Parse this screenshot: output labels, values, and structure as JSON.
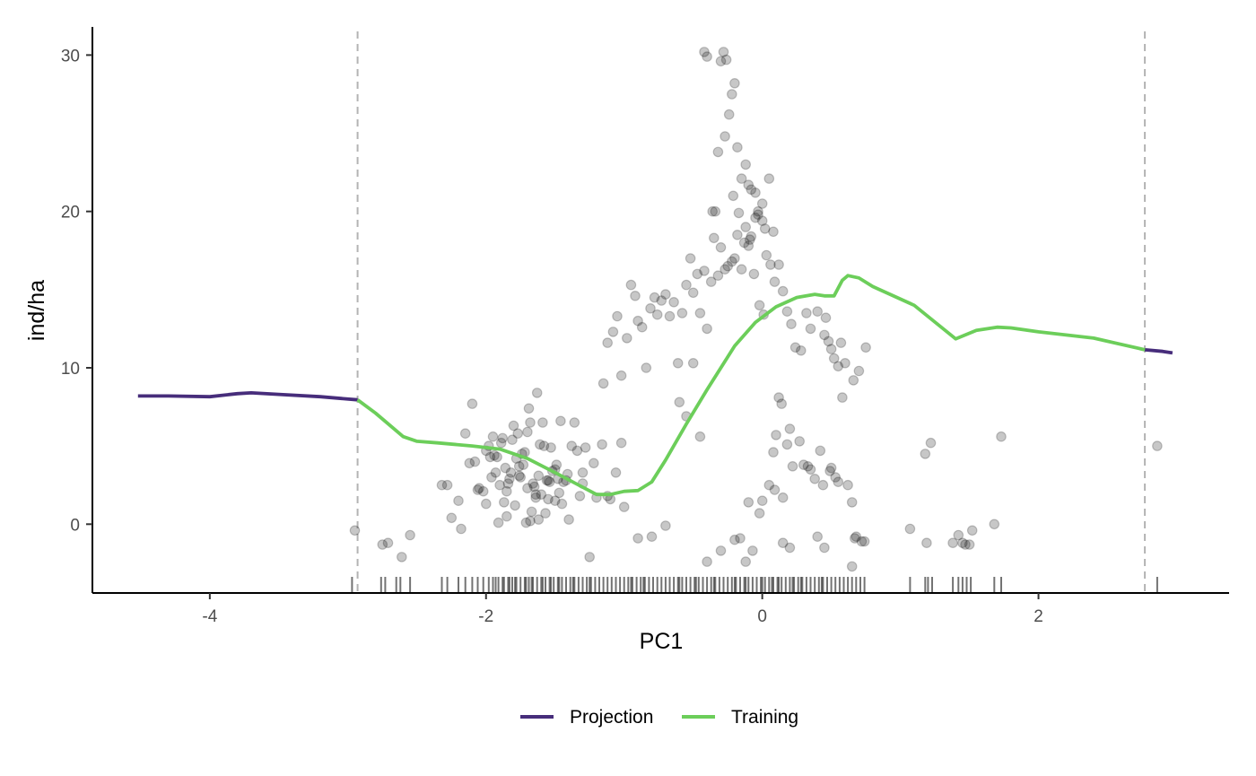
{
  "chart_data": {
    "type": "scatter",
    "title": "",
    "xlabel": "PC1",
    "ylabel": "ind/ha",
    "xlim": [
      -4.85,
      3.38
    ],
    "ylim": [
      -4.4,
      31.8
    ],
    "x_ticks": [
      -4,
      -2,
      0,
      2
    ],
    "x_tick_labels": [
      "-4",
      "-2",
      "0",
      "2"
    ],
    "y_ticks": [
      0,
      10,
      20,
      30
    ],
    "y_tick_labels": [
      "0",
      "10",
      "20",
      "30"
    ],
    "grid": false,
    "legend_position": "bottom",
    "training_bounds": [
      -2.93,
      2.77
    ],
    "colors": {
      "projection": "#472d7b",
      "training": "#6cce5a",
      "points": "#000000",
      "bounds": "#b3b3b3"
    },
    "series": [
      {
        "name": "Projection",
        "color": "#472d7b",
        "segments": [
          {
            "x": [
              -4.52,
              -4.3,
              -4.0,
              -3.8,
              -3.7,
              -3.5,
              -3.2,
              -2.93
            ],
            "y": [
              8.2,
              8.2,
              8.15,
              8.35,
              8.4,
              8.3,
              8.15,
              7.95
            ]
          },
          {
            "x": [
              2.77,
              2.9,
              2.97
            ],
            "y": [
              11.15,
              11.05,
              10.95
            ]
          }
        ]
      },
      {
        "name": "Training",
        "color": "#6cce5a",
        "x": [
          -2.93,
          -2.8,
          -2.6,
          -2.5,
          -2.35,
          -2.1,
          -1.9,
          -1.7,
          -1.5,
          -1.35,
          -1.2,
          -1.1,
          -1.0,
          -0.9,
          -0.8,
          -0.7,
          -0.55,
          -0.4,
          -0.2,
          -0.05,
          0.1,
          0.25,
          0.38,
          0.45,
          0.52,
          0.58,
          0.62,
          0.7,
          0.8,
          1.1,
          1.4,
          1.55,
          1.7,
          1.8,
          2.0,
          2.4,
          2.77
        ],
        "y": [
          7.95,
          7.1,
          5.6,
          5.3,
          5.2,
          5.0,
          4.8,
          4.2,
          3.3,
          2.6,
          1.9,
          1.9,
          2.1,
          2.15,
          2.7,
          4.1,
          6.4,
          8.6,
          11.4,
          12.9,
          13.9,
          14.5,
          14.7,
          14.6,
          14.6,
          15.6,
          15.9,
          15.75,
          15.2,
          14.0,
          11.85,
          12.4,
          12.6,
          12.55,
          12.3,
          11.9,
          11.15
        ]
      }
    ],
    "points": {
      "x": [
        -2.95,
        -2.75,
        -2.71,
        -2.61,
        -2.55,
        -2.32,
        -2.2,
        -2.1,
        -2.05,
        -2.0,
        -1.95,
        -1.92,
        -1.9,
        -1.87,
        -1.85,
        -1.82,
        -1.78,
        -1.75,
        -1.72,
        -1.7,
        -1.68,
        -1.66,
        -1.64,
        -1.62,
        -1.6,
        -1.58,
        -1.55,
        -1.52,
        -1.5,
        -1.47,
        -1.44,
        -1.4,
        -1.36,
        -1.32,
        -1.28,
        -1.22,
        -1.16,
        -1.12,
        -1.06,
        -1.02,
        -2.25,
        -2.15,
        -2.08,
        -1.98,
        -1.93,
        -1.88,
        -1.84,
        -1.8,
        -1.77,
        -1.73,
        -1.69,
        -1.65,
        -1.61,
        -1.57,
        -1.53,
        -1.48,
        -1.42,
        -1.38,
        -1.34,
        -1.3,
        -2.28,
        -2.12,
        -2.02,
        -1.96,
        -1.91,
        -1.86,
        -1.81,
        -1.76,
        -1.71,
        -1.67,
        -1.63,
        -1.59,
        -1.54,
        -1.49,
        -1.45,
        -2.18,
        -2.06,
        -1.97,
        -1.89,
        -1.83,
        -1.79,
        -1.74,
        -1.68,
        -1.64,
        -1.56,
        -1.5,
        -1.46,
        -1.41,
        -2.0,
        -1.94,
        -1.85,
        -1.76,
        -1.7,
        -1.62,
        -1.55,
        -1.25,
        -1.2,
        -1.15,
        -1.12,
        -1.08,
        -1.05,
        -1.02,
        -0.98,
        -0.95,
        -0.92,
        -0.9,
        -0.87,
        -0.84,
        -0.81,
        -0.78,
        -0.76,
        -0.73,
        -0.7,
        -0.67,
        -0.64,
        -0.61,
        -0.58,
        -0.55,
        -0.52,
        -0.5,
        -0.47,
        -0.45,
        -0.42,
        -0.4,
        -0.37,
        -0.35,
        -0.32,
        -0.3,
        -0.27,
        -0.25,
        -0.22,
        -0.2,
        -0.18,
        -0.15,
        -0.12,
        -0.1,
        -0.08,
        -0.05,
        -0.03,
        0.0,
        0.03,
        0.06,
        0.09,
        0.12,
        0.15,
        0.18,
        0.21,
        0.24,
        0.28,
        0.32,
        0.35,
        0.4,
        0.45,
        0.5,
        0.55,
        -0.42,
        -0.4,
        -0.3,
        -0.28,
        -0.26,
        -0.24,
        -0.22,
        -0.2,
        -0.18,
        -0.15,
        -0.12,
        -0.1,
        -0.08,
        -0.05,
        -0.03,
        0.0,
        0.02,
        0.05,
        0.08,
        -0.36,
        -0.34,
        -0.32,
        -0.27,
        -0.21,
        -0.17,
        -0.13,
        -0.09,
        -0.06,
        -0.02,
        0.01,
        0.12,
        0.14,
        0.1,
        0.08,
        0.2,
        0.18,
        0.3,
        0.35,
        0.42,
        0.5,
        0.55,
        0.62,
        0.66,
        0.7,
        0.75,
        0.48,
        0.52,
        0.46,
        0.58,
        0.65,
        0.05,
        0.09,
        0.15,
        0.22,
        0.27,
        0.33,
        0.38,
        0.44,
        0.49,
        0.53,
        0.57,
        0.6,
        0.67,
        0.72,
        -0.02,
        -0.07,
        -0.12,
        -0.16,
        -0.6,
        -0.55,
        -0.5,
        -0.45,
        -0.7,
        -0.8,
        -0.9,
        -1.0,
        -1.1,
        -1.3,
        -0.3,
        -0.4,
        -0.2,
        -0.1,
        0.0,
        0.15,
        0.2,
        0.4,
        0.45,
        0.65,
        0.68,
        0.74,
        1.07,
        1.18,
        1.19,
        1.22,
        1.38,
        1.42,
        1.45,
        1.47,
        1.5,
        1.52,
        1.68,
        1.73,
        2.86
      ],
      "y": [
        -0.4,
        -1.3,
        -1.2,
        -2.1,
        -0.7,
        2.5,
        1.5,
        7.7,
        2.3,
        4.7,
        5.6,
        4.3,
        2.5,
        1.4,
        0.5,
        3.3,
        4.2,
        3.0,
        4.6,
        2.3,
        6.5,
        2.6,
        1.7,
        0.3,
        1.9,
        5.0,
        2.8,
        3.4,
        1.5,
        2.0,
        2.7,
        0.3,
        6.5,
        1.8,
        4.9,
        3.9,
        5.1,
        1.8,
        3.3,
        5.2,
        0.4,
        5.8,
        4.0,
        5.0,
        3.3,
        5.5,
        2.6,
        6.3,
        5.8,
        3.8,
        7.4,
        2.4,
        5.1,
        0.7,
        4.9,
        2.9,
        2.8,
        5.0,
        4.7,
        2.6,
        2.5,
        3.9,
        2.1,
        3.0,
        0.1,
        3.6,
        5.4,
        3.1,
        0.1,
        0.8,
        8.4,
        6.5,
        2.7,
        3.8,
        1.3,
        -0.3,
        2.2,
        4.3,
        5.2,
        2.9,
        1.2,
        4.5,
        0.2,
        1.9,
        2.8,
        3.5,
        6.6,
        3.2,
        1.3,
        4.4,
        2.1,
        3.7,
        5.9,
        3.1,
        1.6,
        -2.1,
        1.7,
        9.0,
        11.6,
        12.3,
        13.3,
        9.5,
        11.9,
        15.3,
        14.6,
        13.0,
        12.6,
        10.0,
        13.8,
        14.5,
        13.4,
        14.3,
        14.7,
        13.3,
        14.2,
        10.3,
        13.5,
        15.3,
        17.0,
        14.8,
        16.0,
        13.5,
        16.2,
        12.5,
        15.5,
        18.3,
        15.9,
        17.7,
        16.3,
        16.5,
        16.8,
        17.0,
        18.5,
        16.3,
        19.0,
        17.8,
        18.4,
        19.6,
        19.8,
        20.5,
        17.2,
        16.6,
        15.5,
        16.6,
        14.9,
        13.6,
        12.8,
        11.3,
        11.1,
        13.5,
        12.5,
        13.6,
        12.1,
        11.2,
        10.1,
        30.2,
        29.9,
        29.6,
        30.2,
        29.7,
        26.2,
        27.5,
        28.2,
        24.1,
        22.1,
        23.0,
        21.7,
        21.4,
        21.2,
        20.0,
        19.4,
        18.9,
        22.1,
        18.7,
        20.0,
        20.0,
        23.8,
        24.8,
        21.0,
        19.9,
        18.0,
        18.2,
        16.0,
        14.0,
        13.4,
        8.1,
        7.7,
        5.7,
        4.6,
        6.1,
        5.1,
        3.8,
        3.5,
        4.7,
        3.6,
        2.7,
        2.5,
        9.2,
        9.8,
        11.3,
        11.7,
        10.6,
        13.2,
        8.1,
        1.4,
        2.5,
        2.2,
        1.7,
        3.7,
        5.3,
        3.7,
        2.9,
        2.5,
        3.4,
        3.0,
        11.6,
        10.3,
        -0.9,
        -1.1,
        0.7,
        -1.7,
        -2.4,
        -0.9,
        7.8,
        6.9,
        10.3,
        5.6,
        -0.1,
        -0.8,
        -0.9,
        1.1,
        1.6,
        3.3,
        -1.7,
        -2.4,
        -1.0,
        1.4,
        1.5,
        -1.2,
        -1.5,
        -0.8,
        -1.5,
        -2.7,
        -0.8,
        -1.1,
        -0.3,
        4.5,
        -1.2,
        5.2,
        -1.2,
        -0.7,
        -1.2,
        -1.3,
        -1.3,
        -0.4,
        0.0,
        5.6,
        5.0
      ]
    },
    "rug_x": [
      -2.97,
      -2.76,
      -2.73,
      -2.65,
      -2.62,
      -2.55,
      -2.32,
      -2.28,
      -2.2,
      -2.15,
      -2.1,
      -2.06,
      -2.02,
      -1.98,
      -1.95,
      -1.91,
      -1.88,
      -1.84,
      -1.81,
      -1.78,
      -1.75,
      -1.72,
      -1.69,
      -1.66,
      -1.63,
      -1.6,
      -1.57,
      -1.54,
      -1.51,
      -1.48,
      -1.45,
      -1.42,
      -1.39,
      -1.36,
      -1.33,
      -1.3,
      -1.27,
      -1.24,
      -1.21,
      -1.18,
      -1.15,
      -1.12,
      -1.09,
      -1.06,
      -1.03,
      -1.0,
      -0.97,
      -0.94,
      -0.91,
      -0.88,
      -0.85,
      -0.82,
      -0.79,
      -0.76,
      -0.73,
      -0.7,
      -0.67,
      -0.64,
      -0.61,
      -0.58,
      -0.55,
      -0.52,
      -0.49,
      -0.46,
      -0.43,
      -0.4,
      -0.37,
      -0.34,
      -0.31,
      -0.28,
      -0.25,
      -0.22,
      -0.19,
      -0.16,
      -0.13,
      -0.1,
      -0.07,
      -0.04,
      -0.01,
      0.02,
      0.05,
      0.08,
      0.11,
      0.14,
      0.17,
      0.2,
      0.23,
      0.26,
      0.29,
      0.32,
      0.35,
      0.38,
      0.41,
      0.44,
      0.47,
      0.5,
      0.53,
      0.56,
      0.59,
      0.62,
      0.65,
      0.68,
      0.71,
      0.74,
      1.07,
      1.18,
      1.2,
      1.23,
      1.38,
      1.42,
      1.45,
      1.48,
      1.51,
      1.68,
      1.73,
      2.86,
      -1.93,
      -1.87,
      -1.83,
      -1.79,
      -1.71,
      -1.67,
      -1.59,
      -1.53,
      -1.47,
      -1.37,
      -1.25,
      -0.95,
      -0.86,
      -0.6,
      -0.48,
      -0.35,
      -0.2,
      -0.12,
      0.0,
      0.07,
      0.12,
      0.22,
      0.28,
      0.43
    ]
  }
}
